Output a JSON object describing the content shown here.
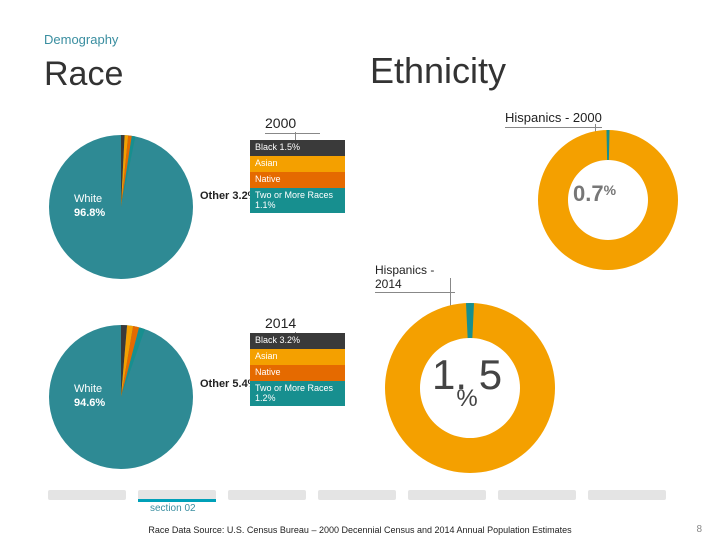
{
  "eyebrow": "Demography",
  "titles": {
    "race": "Race",
    "ethnicity": "Ethnicity"
  },
  "years": {
    "y2000": "2000",
    "y2014": "2014"
  },
  "hispanic_labels": {
    "h2000": "Hispanics - 2000",
    "h2014": "Hispanics - 2014"
  },
  "race_2000": {
    "white": {
      "label": "White",
      "value": "96.8%",
      "pct": 96.8,
      "color": "#2e8a94"
    },
    "other": {
      "label": "Other 3.2%",
      "pct": 3.2
    },
    "breakdown": [
      {
        "label": "Black 1.5%",
        "color": "#3a3a3a"
      },
      {
        "label": "Asian",
        "color": "#f4a000"
      },
      {
        "label": "Native",
        "color": "#e56a00"
      },
      {
        "label": "Two or More Races 1.1%",
        "color": "#178f8f"
      }
    ]
  },
  "race_2014": {
    "white": {
      "label": "White",
      "value": "94.6%",
      "pct": 94.6,
      "color": "#2e8a94"
    },
    "other": {
      "label": "Other 5.4%",
      "pct": 5.4
    },
    "breakdown": [
      {
        "label": "Black 3.2%",
        "color": "#3a3a3a"
      },
      {
        "label": "Asian",
        "color": "#f4a000"
      },
      {
        "label": "Native",
        "color": "#e56a00"
      },
      {
        "label": "Two or More Races 1.2%",
        "color": "#178f8f"
      }
    ]
  },
  "ethnicity_2000": {
    "hispanic_pct": 0.7,
    "ring_color": "#f4a000",
    "slice_color": "#178f8f",
    "center_label": "0.7",
    "center_unit": "%"
  },
  "ethnicity_2014": {
    "hispanic_pct": 1.5,
    "ring_color": "#f4a000",
    "slice_color": "#178f8f",
    "center_label": "1. 5",
    "center_unit": "%"
  },
  "progress": {
    "segments": 7,
    "active_index": 1,
    "label": "section 02"
  },
  "source": "Race Data Source: U.S. Census Bureau – 2000 Decennial Census and 2014 Annual Population Estimates",
  "page_number": "8",
  "style": {
    "pie_radius": 72,
    "donut_outer_2000": 70,
    "donut_inner_2000": 40,
    "donut_outer_2014": 85,
    "donut_inner_2014": 50
  }
}
